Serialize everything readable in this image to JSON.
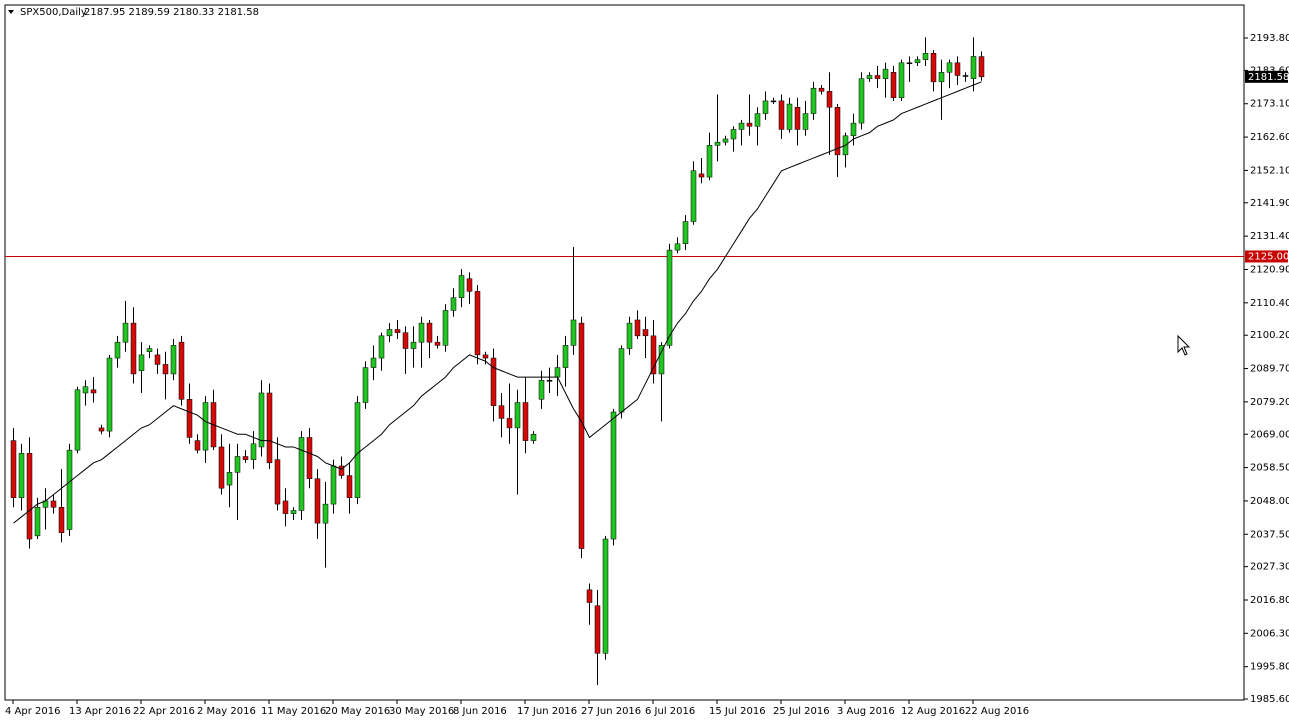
{
  "chart_data": {
    "type": "candlestick",
    "title": "SPX500,Daily",
    "ohlc_label": "2187.95 2189.59 2180.33 2181.58",
    "up_color": "#22c322",
    "down_color": "#d10a0a",
    "wick_color": "#000000",
    "ylim": [
      1985.3,
      2204.2
    ],
    "yticks": [
      {
        "value": 2193.8,
        "label": "2193.80"
      },
      {
        "value": 2183.6,
        "label": "2183.60"
      },
      {
        "value": 2173.1,
        "label": "2173.10"
      },
      {
        "value": 2162.6,
        "label": "2162.60"
      },
      {
        "value": 2152.1,
        "label": "2152.10"
      },
      {
        "value": 2141.9,
        "label": "2141.90"
      },
      {
        "value": 2131.4,
        "label": "2131.40"
      },
      {
        "value": 2120.9,
        "label": "2120.90"
      },
      {
        "value": 2110.4,
        "label": "2110.40"
      },
      {
        "value": 2100.2,
        "label": "2100.20"
      },
      {
        "value": 2089.7,
        "label": "2089.70"
      },
      {
        "value": 2079.2,
        "label": "2079.20"
      },
      {
        "value": 2069,
        "label": "2069.00"
      },
      {
        "value": 2058.5,
        "label": "2058.50"
      },
      {
        "value": 2048,
        "label": "2048.00"
      },
      {
        "value": 2037.5,
        "label": "2037.50"
      },
      {
        "value": 2027.3,
        "label": "2027.30"
      },
      {
        "value": 2016.8,
        "label": "2016.80"
      },
      {
        "value": 2006.3,
        "label": "2006.30"
      },
      {
        "value": 1995.8,
        "label": "1995.80"
      },
      {
        "value": 1985.6,
        "label": "1985.60"
      }
    ],
    "categories": [
      "4 Apr 2016",
      null,
      null,
      null,
      null,
      null,
      null,
      null,
      "13 Apr 2016",
      null,
      null,
      null,
      null,
      null,
      null,
      null,
      "22 Apr 2016",
      null,
      null,
      null,
      null,
      null,
      null,
      null,
      "2 May 2016",
      null,
      null,
      null,
      null,
      null,
      null,
      null,
      "11 May 2016",
      null,
      null,
      null,
      null,
      null,
      null,
      null,
      "20 May 2016",
      null,
      null,
      null,
      null,
      null,
      null,
      null,
      "30 May 2016",
      null,
      null,
      null,
      null,
      null,
      null,
      null,
      "8 Jun 2016",
      null,
      null,
      null,
      null,
      null,
      null,
      null,
      "17 Jun 2016",
      null,
      null,
      null,
      null,
      null,
      null,
      null,
      "27 Jun 2016",
      null,
      null,
      null,
      null,
      null,
      null,
      null,
      "6 Jul 2016",
      null,
      null,
      null,
      null,
      null,
      null,
      null,
      "15 Jul 2016",
      null,
      null,
      null,
      null,
      null,
      null,
      null,
      "25 Jul 2016",
      null,
      null,
      null,
      null,
      null,
      null,
      null,
      "3 Aug 2016",
      null,
      null,
      null,
      null,
      null,
      null,
      null,
      "12 Aug 2016",
      null,
      null,
      null,
      null,
      null,
      null,
      null,
      "22 Aug 2016",
      null
    ],
    "ohlc": [
      [
        2067,
        2071,
        2046,
        2049
      ],
      [
        2049,
        2066,
        2045,
        2063
      ],
      [
        2063,
        2068,
        2033,
        2036
      ],
      [
        2037,
        2049,
        2036,
        2046
      ],
      [
        2046,
        2052,
        2039,
        2048
      ],
      [
        2048,
        2050,
        2044,
        2046
      ],
      [
        2046,
        2058,
        2035,
        2038
      ],
      [
        2039,
        2066,
        2037,
        2064
      ],
      [
        2064,
        2084,
        2063,
        2083
      ],
      [
        2082,
        2086,
        2078,
        2084
      ],
      [
        2083,
        2087,
        2079,
        2082
      ],
      [
        2071,
        2072,
        2069,
        2070
      ],
      [
        2070,
        2094,
        2068,
        2093
      ],
      [
        2093,
        2100,
        2090,
        2098
      ],
      [
        2098,
        2111,
        2095,
        2104
      ],
      [
        2104,
        2109,
        2085,
        2088
      ],
      [
        2089,
        2098,
        2082,
        2094
      ],
      [
        2095,
        2097,
        2093,
        2096
      ],
      [
        2094,
        2096,
        2088,
        2091
      ],
      [
        2091,
        2095,
        2080,
        2088
      ],
      [
        2088,
        2099,
        2086,
        2097
      ],
      [
        2098,
        2100,
        2078,
        2080
      ],
      [
        2080,
        2085,
        2066,
        2068
      ],
      [
        2067,
        2069,
        2063,
        2064
      ],
      [
        2064,
        2081,
        2060,
        2079
      ],
      [
        2079,
        2083,
        2064,
        2065
      ],
      [
        2065,
        2069,
        2050,
        2052
      ],
      [
        2053,
        2066,
        2046,
        2057
      ],
      [
        2057,
        2066,
        2042,
        2062
      ],
      [
        2062,
        2064,
        2060,
        2061
      ],
      [
        2061,
        2070,
        2058,
        2066
      ],
      [
        2065,
        2086,
        2062,
        2082
      ],
      [
        2082,
        2085,
        2058,
        2060
      ],
      [
        2061,
        2068,
        2045,
        2047
      ],
      [
        2048,
        2052,
        2040,
        2044
      ],
      [
        2044,
        2046,
        2042,
        2045
      ],
      [
        2045,
        2070,
        2042,
        2068
      ],
      [
        2068,
        2071,
        2052,
        2055
      ],
      [
        2055,
        2058,
        2036,
        2041
      ],
      [
        2041,
        2054,
        2027,
        2047
      ],
      [
        2047,
        2061,
        2044,
        2059
      ],
      [
        2059,
        2062,
        2055,
        2056
      ],
      [
        2056,
        2060,
        2044,
        2049
      ],
      [
        2049,
        2081,
        2047,
        2079
      ],
      [
        2079,
        2092,
        2077,
        2090
      ],
      [
        2090,
        2097,
        2086,
        2093
      ],
      [
        2093,
        2101,
        2089,
        2100
      ],
      [
        2100,
        2104,
        2098,
        2102
      ],
      [
        2102,
        2105,
        2099,
        2101
      ],
      [
        2101,
        2103,
        2088,
        2096
      ],
      [
        2096,
        2103,
        2090,
        2098
      ],
      [
        2098,
        2106,
        2090,
        2104
      ],
      [
        2104,
        2105,
        2093,
        2098
      ],
      [
        2098,
        2100,
        2096,
        2097
      ],
      [
        2097,
        2110,
        2095,
        2108
      ],
      [
        2108,
        2115,
        2106,
        2112
      ],
      [
        2112,
        2121,
        2109,
        2119
      ],
      [
        2118,
        2120,
        2110,
        2114
      ],
      [
        2114,
        2116,
        2091,
        2094
      ],
      [
        2094,
        2095,
        2091,
        2093
      ],
      [
        2093,
        2096,
        2073,
        2078
      ],
      [
        2078,
        2082,
        2068,
        2074
      ],
      [
        2074,
        2085,
        2066,
        2071
      ],
      [
        2071,
        2083,
        2050,
        2079
      ],
      [
        2079,
        2087,
        2063,
        2067
      ],
      [
        2067,
        2070,
        2066,
        2069
      ],
      [
        2080,
        2089,
        2077,
        2086
      ],
      [
        2086,
        2090,
        2082,
        2086
      ],
      [
        2087,
        2094,
        2081,
        2090
      ],
      [
        2090,
        2100,
        2084,
        2097
      ],
      [
        2097,
        2128,
        2094,
        2105
      ],
      [
        2104,
        2106,
        2030,
        2033
      ],
      [
        2020,
        2022,
        2009,
        2016
      ],
      [
        2015,
        2020,
        1990,
        2000
      ],
      [
        2000,
        2037,
        1998,
        2036
      ],
      [
        2036,
        2077,
        2034,
        2076
      ],
      [
        2076,
        2097,
        2074,
        2096
      ],
      [
        2096,
        2106,
        2094,
        2104
      ],
      [
        2105,
        2108,
        2099,
        2100
      ],
      [
        2102,
        2106,
        2093,
        2100
      ],
      [
        2100,
        2105,
        2085,
        2088
      ],
      [
        2088,
        2098,
        2073,
        2097
      ],
      [
        2097,
        2129,
        2096,
        2127
      ],
      [
        2127,
        2131,
        2126,
        2129
      ],
      [
        2129,
        2138,
        2127,
        2136
      ],
      [
        2136,
        2155,
        2135,
        2152
      ],
      [
        2151,
        2156,
        2148,
        2150
      ],
      [
        2150,
        2164,
        2149,
        2160
      ],
      [
        2160,
        2176,
        2155,
        2161
      ],
      [
        2161,
        2163,
        2160,
        2162
      ],
      [
        2162,
        2166,
        2158,
        2165
      ],
      [
        2165,
        2168,
        2160,
        2167
      ],
      [
        2167,
        2176,
        2163,
        2166
      ],
      [
        2166,
        2172,
        2160,
        2170
      ],
      [
        2170,
        2177,
        2168,
        2174
      ],
      [
        2174,
        2175,
        2173,
        2174
      ],
      [
        2174,
        2176,
        2162,
        2165
      ],
      [
        2165,
        2175,
        2164,
        2173
      ],
      [
        2172,
        2175,
        2160,
        2165
      ],
      [
        2165,
        2174,
        2163,
        2170
      ],
      [
        2170,
        2180,
        2168,
        2178
      ],
      [
        2178,
        2179,
        2176,
        2177
      ],
      [
        2177,
        2183,
        2157,
        2172
      ],
      [
        2172,
        2173,
        2150,
        2157
      ],
      [
        2157,
        2164,
        2153,
        2163
      ],
      [
        2163,
        2170,
        2160,
        2167
      ],
      [
        2167,
        2183,
        2165,
        2181
      ],
      [
        2181,
        2183,
        2180,
        2182
      ],
      [
        2182,
        2185,
        2178,
        2181
      ],
      [
        2181,
        2186,
        2175,
        2184
      ],
      [
        2183,
        2185,
        2174,
        2175
      ],
      [
        2175,
        2187,
        2174,
        2186
      ],
      [
        2186,
        2188,
        2180,
        2186
      ],
      [
        2186,
        2188,
        2185,
        2187
      ],
      [
        2187,
        2194,
        2185,
        2189
      ],
      [
        2189,
        2190,
        2177,
        2180
      ],
      [
        2180,
        2187,
        2168,
        2183
      ],
      [
        2183,
        2187,
        2178,
        2186
      ],
      [
        2186,
        2188,
        2179,
        2182
      ],
      [
        2182,
        2183,
        2180,
        2182
      ],
      [
        2181,
        2194,
        2177,
        2188
      ],
      [
        2187.95,
        2189.59,
        2180.33,
        2181.58
      ]
    ],
    "moving_average": {
      "color": "#000000",
      "values": [
        2041,
        2043,
        2045,
        2047,
        2048,
        2050,
        2052,
        2054,
        2056,
        2058,
        2060,
        2061,
        2063,
        2065,
        2067,
        2069,
        2071,
        2072,
        2074,
        2076,
        2078,
        2077,
        2076,
        2075,
        2073,
        2072,
        2071,
        2070,
        2069,
        2069,
        2068,
        2067,
        2067,
        2066,
        2065,
        2065,
        2064,
        2063,
        2062,
        2060,
        2059,
        2058,
        2060,
        2063,
        2065,
        2067,
        2069,
        2072,
        2074,
        2076,
        2078,
        2081,
        2083,
        2085,
        2087,
        2090,
        2092,
        2094,
        2093,
        2092,
        2090,
        2089,
        2088,
        2087,
        2087,
        2087,
        2087,
        2087,
        2087,
        2082,
        2077,
        2073,
        2068,
        2070,
        2072,
        2074,
        2076,
        2078,
        2080,
        2085,
        2090,
        2095,
        2100,
        2104,
        2107,
        2111,
        2114,
        2118,
        2121,
        2125,
        2129,
        2133,
        2137,
        2140,
        2144,
        2148,
        2152,
        2153,
        2154,
        2155,
        2156,
        2157,
        2158,
        2159,
        2160,
        2162,
        2163,
        2164,
        2166,
        2167,
        2168,
        2170,
        2171,
        2172,
        2173,
        2174,
        2175,
        2176,
        2177,
        2178,
        2179,
        2180
      ]
    },
    "hline": {
      "value": 2125,
      "label": "2125.00",
      "color": "#c80000"
    },
    "price_label": {
      "value": 2181.58,
      "label": "2181.58"
    }
  }
}
